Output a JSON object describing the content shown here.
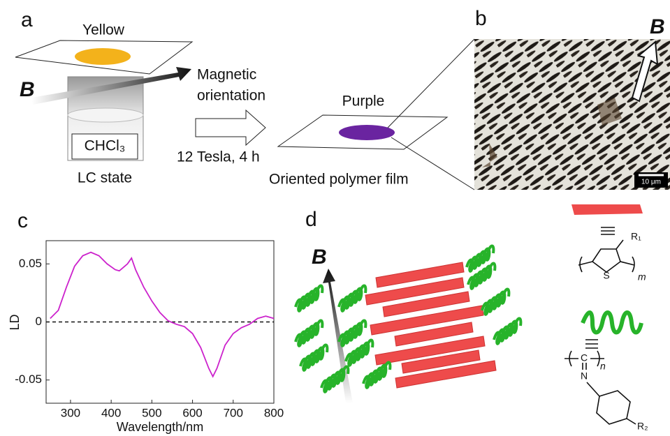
{
  "panel_a": {
    "label": "a",
    "top_color": "Yellow",
    "field": "B",
    "solvent": "CHCl₃",
    "state": "LC state",
    "process_line1": "Magnetic",
    "process_line2": "orientation",
    "condition": "12 Tesla, 4 h",
    "film_color": "Purple",
    "film": "Oriented polymer film"
  },
  "panel_b": {
    "label": "b",
    "field": "B",
    "scale_bar": "10 μm"
  },
  "panel_c": {
    "label": "c"
  },
  "chart_data": {
    "type": "line",
    "xlabel": "Wavelength/nm",
    "ylabel": "LD",
    "x": [
      250,
      270,
      290,
      310,
      330,
      350,
      370,
      390,
      410,
      420,
      440,
      450,
      460,
      480,
      500,
      520,
      540,
      560,
      580,
      600,
      620,
      640,
      650,
      660,
      680,
      700,
      720,
      740,
      760,
      780,
      800
    ],
    "series": [
      {
        "name": "LD",
        "color": "#cc22cc",
        "values": [
          0.003,
          0.01,
          0.03,
          0.048,
          0.057,
          0.06,
          0.057,
          0.05,
          0.045,
          0.044,
          0.05,
          0.055,
          0.045,
          0.03,
          0.018,
          0.008,
          0.001,
          -0.002,
          -0.004,
          -0.01,
          -0.022,
          -0.04,
          -0.047,
          -0.04,
          -0.02,
          -0.01,
          -0.005,
          -0.002,
          0.003,
          0.005,
          0.003
        ]
      }
    ],
    "xlim": [
      240,
      800
    ],
    "ylim": [
      -0.07,
      0.07
    ],
    "xticks": [
      300,
      400,
      500,
      600,
      700,
      800
    ],
    "yticks": [
      0.05,
      0,
      -0.05
    ]
  },
  "panel_d": {
    "label": "d",
    "field": "B",
    "r1": "R₁",
    "sulfur": "S",
    "m": "m",
    "carbon": "C",
    "nitrogen": "N",
    "n": "n",
    "r2": "R₂"
  }
}
